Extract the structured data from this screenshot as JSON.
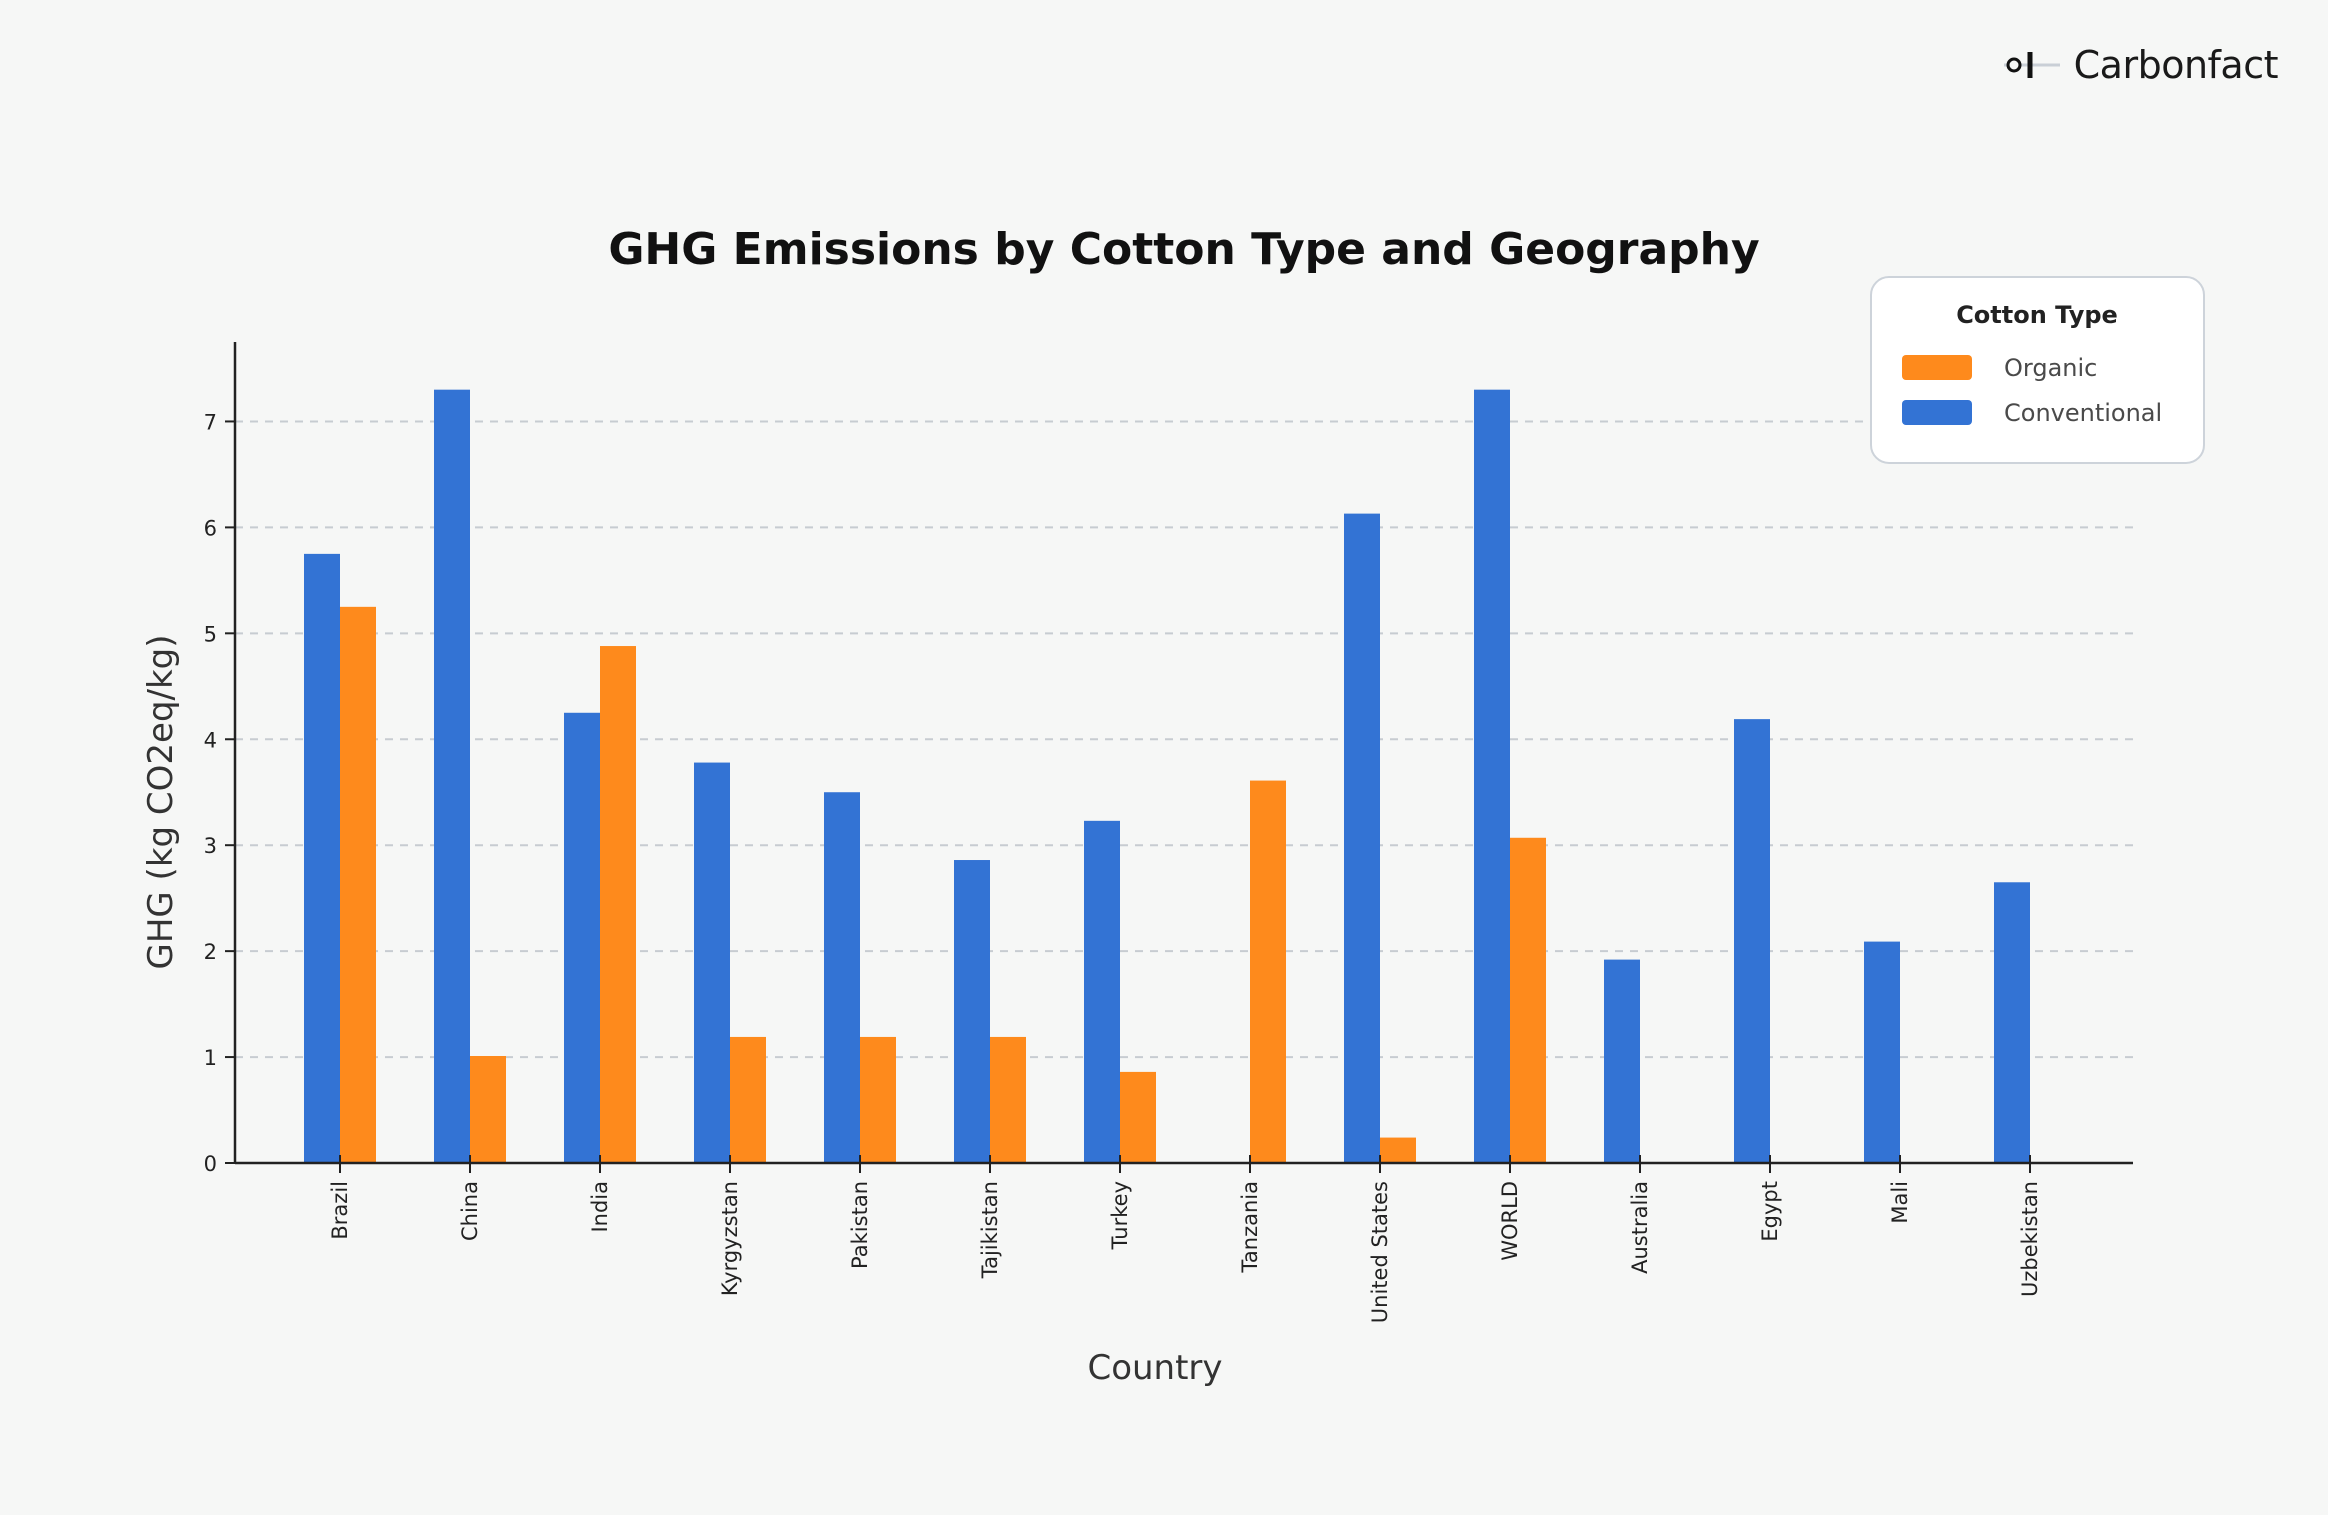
{
  "brand": {
    "name": "Carbonfact",
    "logo_icon": "carbonfact-logo-icon"
  },
  "colors": {
    "organic": "#fe8a1c",
    "conventional": "#3373d4",
    "grid": "#c7ccd1",
    "axis": "#222222",
    "background": "#f6f7f6"
  },
  "chart_data": {
    "type": "bar",
    "title": "GHG Emissions by Cotton Type and Geography",
    "xlabel": "Country",
    "ylabel": "GHG (kg CO2eq/kg)",
    "categories": [
      "Brazil",
      "China",
      "India",
      "Kyrgyzstan",
      "Pakistan",
      "Tajikistan",
      "Turkey",
      "Tanzania",
      "United States",
      "WORLD",
      "Australia",
      "Egypt",
      "Mali",
      "Uzbekistan"
    ],
    "series": [
      {
        "name": "Conventional",
        "values": [
          5.75,
          7.3,
          4.25,
          3.78,
          3.5,
          2.86,
          3.23,
          null,
          6.13,
          7.3,
          1.92,
          4.19,
          2.09,
          2.65
        ]
      },
      {
        "name": "Organic",
        "values": [
          5.25,
          1.01,
          4.88,
          1.19,
          1.19,
          1.19,
          0.86,
          3.61,
          0.24,
          3.07,
          null,
          null,
          null,
          null
        ]
      }
    ],
    "ylim": [
      0,
      7.75
    ],
    "yticks": [
      0,
      1,
      2,
      3,
      4,
      5,
      6,
      7
    ],
    "grid": true,
    "legend": {
      "title": "Cotton Type",
      "entries": [
        "Organic",
        "Conventional"
      ],
      "position": "top-right"
    }
  }
}
